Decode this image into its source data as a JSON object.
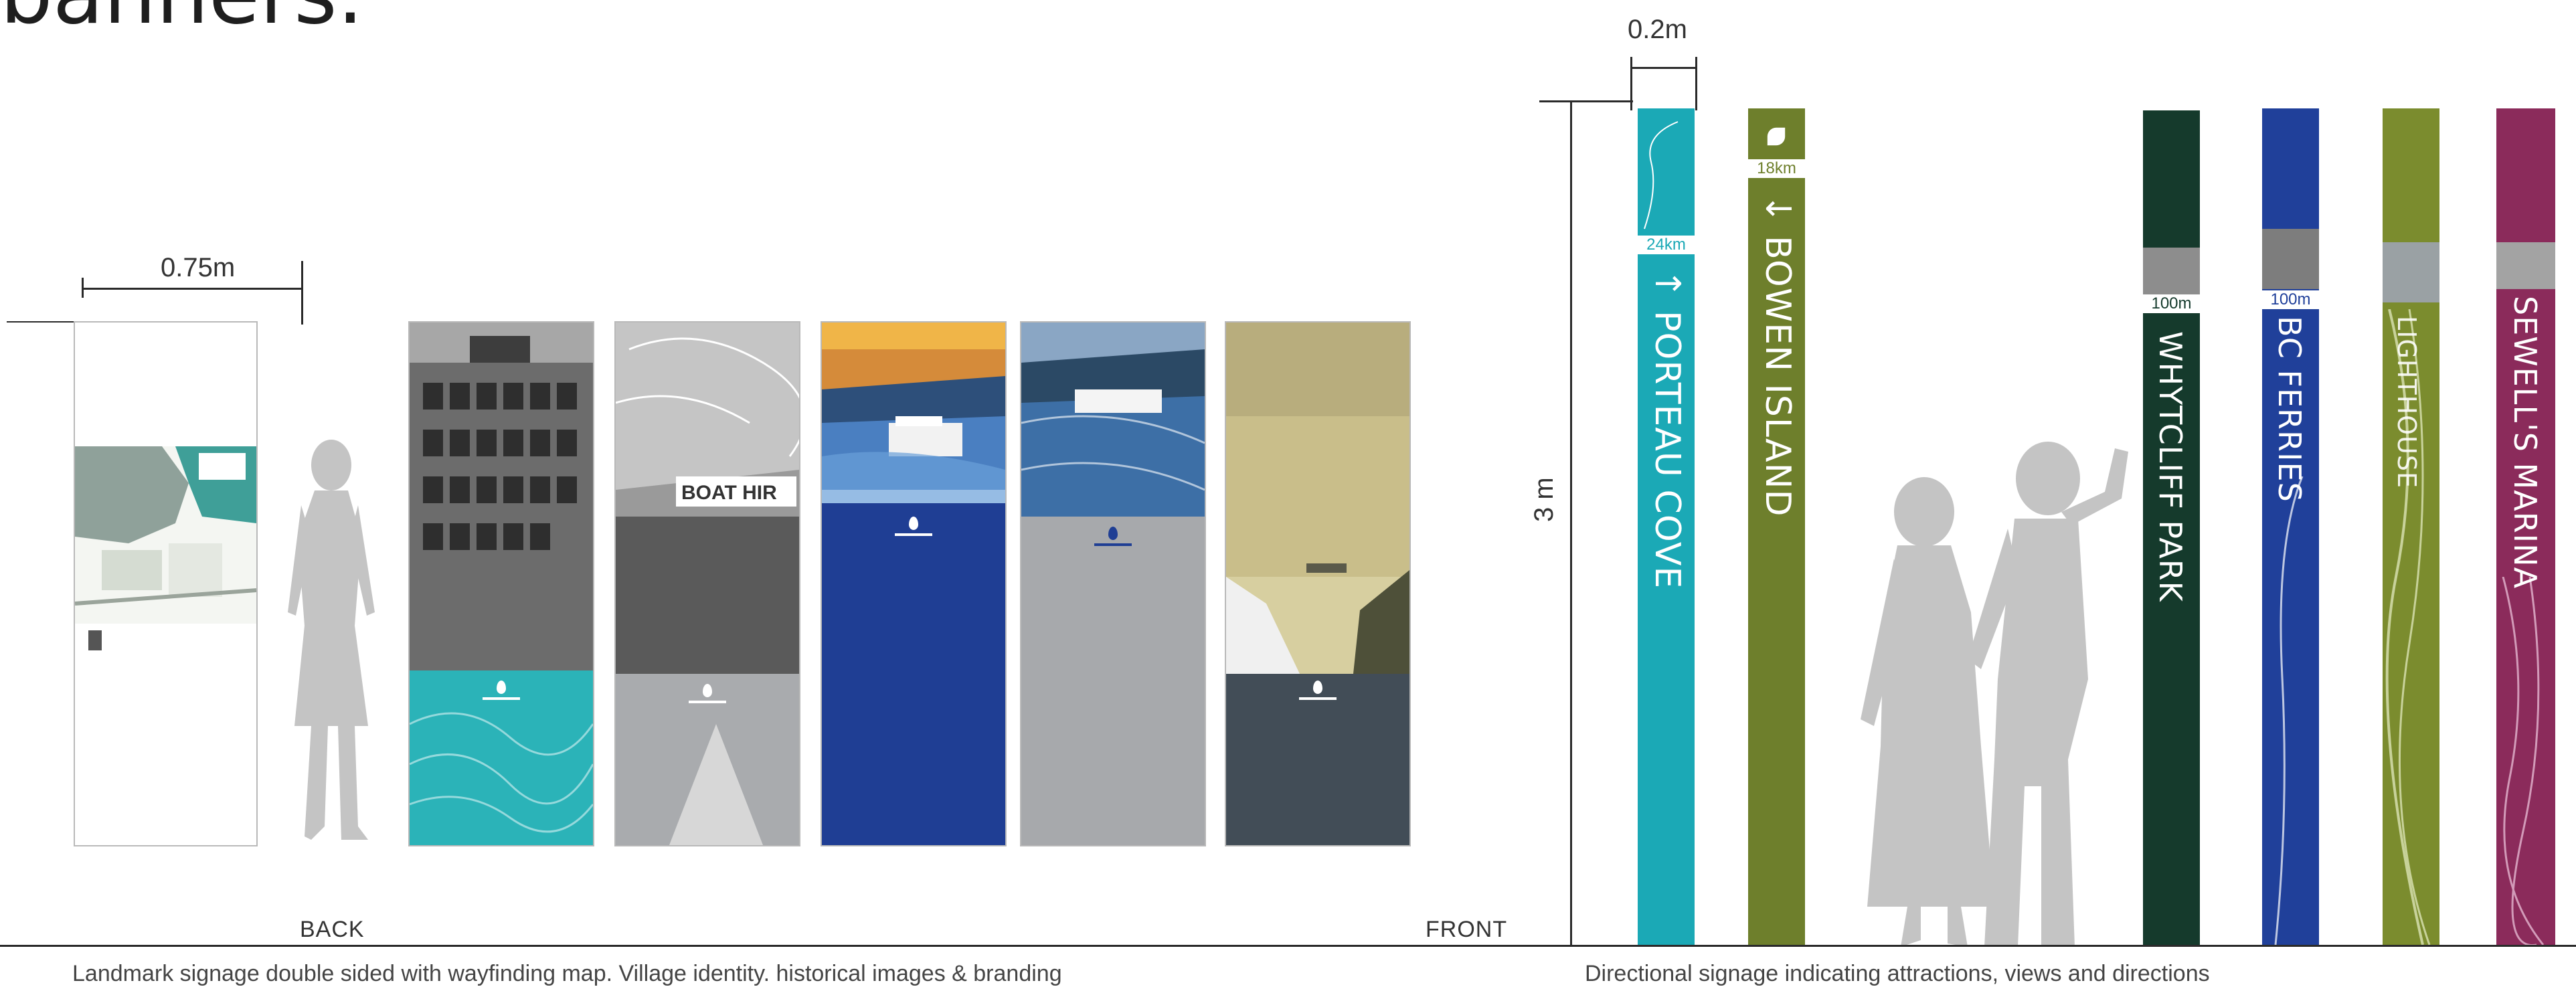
{
  "heading": "banners.",
  "left": {
    "width_label": "0.75m",
    "back_label": "BACK",
    "front_label": "FRONT",
    "caption": "Landmark signage double sided with wayfinding map. Village identity. historical images  & branding",
    "panels": [
      {
        "name": "map-panel",
        "top_color": "#ffffff",
        "bottom_color": "#ffffff"
      },
      {
        "name": "ferry-photo-panel",
        "top_color": "#5a5a5a",
        "bottom_color": "#2bb3b8"
      },
      {
        "name": "boat-hire-panel",
        "top_color": "#8c8c8c",
        "bottom_color": "#a9abae"
      },
      {
        "name": "ferry-blue-panel",
        "top_color": "#e7a340",
        "bottom_color": "#1f3e94"
      },
      {
        "name": "ferry-grey-panel",
        "top_color": "#2f6fb1",
        "bottom_color": "#a7a9ac"
      },
      {
        "name": "marina-dark-panel",
        "top_color": "#cbbf7f",
        "bottom_color": "#424d57"
      }
    ],
    "photo_text": "BOAT HIR"
  },
  "right": {
    "width_label": "0.2m",
    "height_label": "3 m",
    "caption": "Directional signage indicating attractions, views and directions",
    "posts": [
      {
        "label": "PORTEAU COVE",
        "distance": "24km",
        "arrow": "↑",
        "color": "#1ba9b6",
        "tag_color": "#1ba9b6"
      },
      {
        "label": "BOWEN ISLAND",
        "distance": "18km",
        "arrow": "↓",
        "color": "#6e7f2c",
        "tag_color": "#6e7f2c"
      },
      {
        "label": "WHYTCLIFF PARK",
        "distance": "100m",
        "arrow": "←",
        "color": "#153a2c",
        "tag_color": "#ffffff"
      },
      {
        "label": "BC FERRIES",
        "distance": "100m",
        "arrow": "←",
        "color": "#20409a",
        "tag_color": "#ffffff"
      },
      {
        "label": "LIGHTHOUSE",
        "distance": "",
        "arrow": "←",
        "color": "#7b8c2e",
        "tag_color": "#ffffff"
      },
      {
        "label": "SEWELL'S MARINA",
        "distance": "",
        "arrow": "←",
        "color": "#8b2b5b",
        "tag_color": "#ffffff"
      }
    ]
  },
  "colors": {
    "teal": "#1ba9b6",
    "olive": "#6e7f2c",
    "navy": "#20409a",
    "grey": "#a7a9ac",
    "slate": "#424d57",
    "plum": "#8b2b5b",
    "forest": "#153a2c"
  }
}
